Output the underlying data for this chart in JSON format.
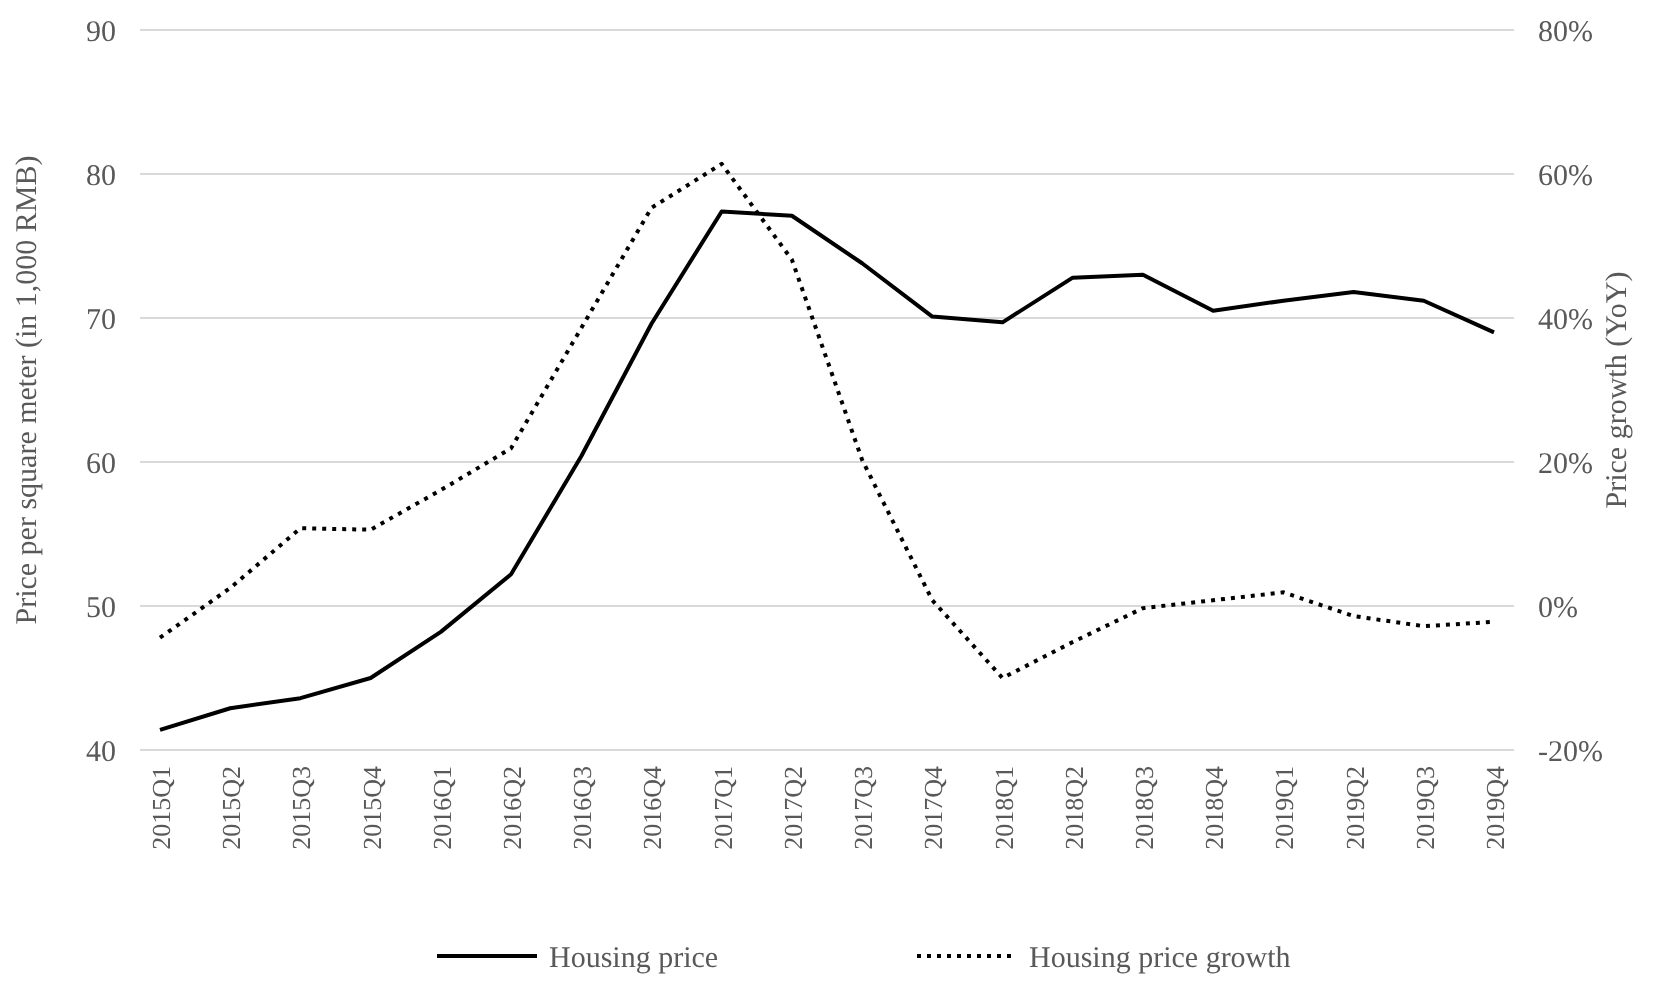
{
  "chart_data": {
    "type": "line",
    "ylabel": "Price per square meter (in 1,000 RMB)",
    "y2label": "Price growth (YoY)",
    "categories": [
      "2015Q1",
      "2015Q2",
      "2015Q3",
      "2015Q4",
      "2016Q1",
      "2016Q2",
      "2016Q3",
      "2016Q4",
      "2017Q1",
      "2017Q2",
      "2017Q3",
      "2017Q4",
      "2018Q1",
      "2018Q2",
      "2018Q3",
      "2018Q4",
      "2019Q1",
      "2019Q2",
      "2019Q3",
      "2019Q4"
    ],
    "series": [
      {
        "name": "Housing price",
        "color": "#000000",
        "line_style": "solid",
        "values": [
          41.4,
          42.9,
          43.6,
          45.0,
          48.2,
          52.2,
          60.4,
          69.6,
          77.4,
          77.1,
          73.8,
          70.1,
          69.7,
          72.8,
          73.0,
          70.5,
          71.2,
          71.8,
          71.2,
          69.0
        ]
      },
      {
        "name": "Housing price growth",
        "color": "#000000",
        "line_style": "dotted",
        "axis": "y2",
        "values": [
          -4.4,
          2.5,
          10.8,
          10.6,
          16.1,
          21.9,
          38.6,
          55.3,
          61.4,
          48.1,
          20.3,
          0.8,
          -10,
          -5,
          -0.3,
          0.8,
          1.9,
          -1.4,
          -2.8,
          -2.2
        ]
      }
    ],
    "ylim": [
      40,
      90
    ],
    "yticks": [
      40,
      50,
      60,
      70,
      80,
      90
    ],
    "y2lim": [
      -20,
      80
    ],
    "y2ticks": [
      {
        "value": -20,
        "label": "-20%"
      },
      {
        "value": 0,
        "label": "0%"
      },
      {
        "value": 20,
        "label": "20%"
      },
      {
        "value": 40,
        "label": "40%"
      },
      {
        "value": 60,
        "label": "60%"
      },
      {
        "value": 80,
        "label": "80%"
      }
    ],
    "grid": "y",
    "legend": "bottom",
    "marker": "none"
  }
}
